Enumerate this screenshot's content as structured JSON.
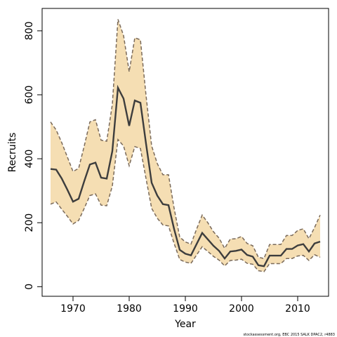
{
  "chart_data": {
    "type": "line",
    "xlabel": "Year",
    "ylabel": "Recruits",
    "xlim": [
      1964.5,
      2015.5
    ],
    "ylim": [
      -30,
      870
    ],
    "x_ticks": [
      1970,
      1980,
      1990,
      2000,
      2010
    ],
    "y_ticks": [
      0,
      200,
      400,
      600,
      800
    ],
    "credit": "stockassessment.org, EBC 2015 SALK DPAC2, r4883",
    "band_fill": "#f5deb3",
    "band_edge": "#7a6a5a",
    "line_color": "#3d3d3d",
    "x": [
      1966,
      1967,
      1968,
      1969,
      1970,
      1971,
      1972,
      1973,
      1974,
      1975,
      1976,
      1977,
      1978,
      1979,
      1980,
      1981,
      1982,
      1983,
      1984,
      1985,
      1986,
      1987,
      1988,
      1989,
      1990,
      1991,
      1992,
      1993,
      1994,
      1995,
      1996,
      1997,
      1998,
      1999,
      2000,
      2001,
      2002,
      2003,
      2004,
      2005,
      2006,
      2007,
      2008,
      2009,
      2010,
      2011,
      2012,
      2013,
      2014
    ],
    "series": [
      {
        "name": "estimate",
        "values": [
          368,
          366,
          338,
          303,
          266,
          275,
          330,
          382,
          388,
          341,
          338,
          424,
          622,
          588,
          503,
          582,
          575,
          447,
          325,
          285,
          258,
          255,
          180,
          115,
          103,
          98,
          133,
          168,
          148,
          128,
          112,
          88,
          110,
          112,
          116,
          99,
          94,
          67,
          64,
          97,
          97,
          97,
          118,
          118,
          129,
          133,
          110,
          135,
          141
        ]
      },
      {
        "name": "upper",
        "values": [
          515,
          490,
          450,
          405,
          360,
          370,
          440,
          515,
          522,
          458,
          455,
          570,
          836,
          785,
          672,
          778,
          772,
          598,
          440,
          385,
          350,
          350,
          245,
          155,
          140,
          133,
          180,
          224,
          200,
          172,
          152,
          120,
          149,
          150,
          157,
          135,
          128,
          92,
          88,
          132,
          132,
          132,
          160,
          160,
          176,
          181,
          150,
          185,
          224
        ]
      },
      {
        "name": "lower",
        "values": [
          258,
          265,
          242,
          220,
          196,
          207,
          245,
          285,
          290,
          255,
          253,
          315,
          460,
          440,
          378,
          438,
          432,
          338,
          245,
          214,
          193,
          190,
          135,
          85,
          77,
          73,
          99,
          125,
          110,
          95,
          83,
          65,
          82,
          83,
          86,
          73,
          70,
          50,
          47,
          72,
          72,
          72,
          88,
          88,
          96,
          98,
          82,
          100,
          92
        ]
      }
    ]
  }
}
